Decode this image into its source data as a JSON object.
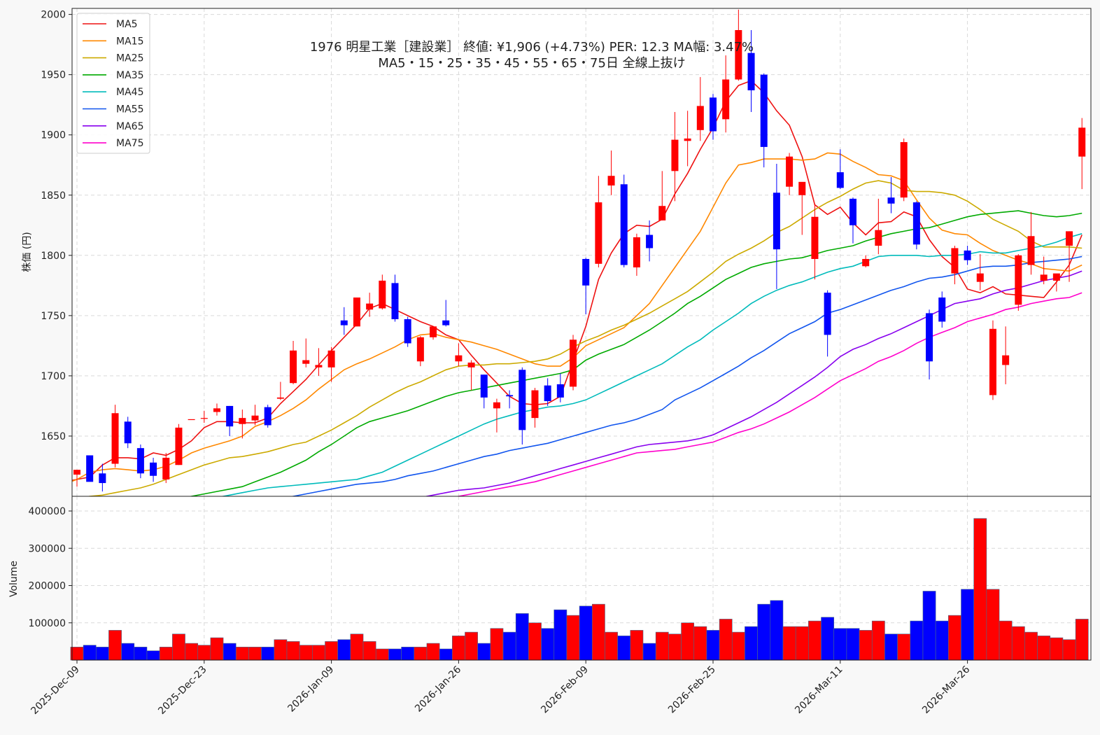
{
  "chart_data": {
    "type": "candlestick",
    "title": "1976 明星工業［建設業］ 終値: ¥1,906 (+4.73%)  PER: 12.3  MA幅: 3.47%",
    "subtitle": "MA5・15・25・35・45・55・65・75日 全線上抜け",
    "ylabel": "株価 (円)",
    "volume_label": "Volume",
    "price_ylim": [
      1600,
      2005
    ],
    "price_ticks": [
      1650,
      1700,
      1750,
      1800,
      1850,
      1900,
      1950,
      2000
    ],
    "volume_ylim": [
      0,
      400000
    ],
    "volume_ticks": [
      100000,
      200000,
      300000,
      400000
    ],
    "x_ticks": [
      {
        "index": 0,
        "label": "2025-Dec-09"
      },
      {
        "index": 10,
        "label": "2025-Dec-23"
      },
      {
        "index": 20,
        "label": "2026-Jan-09"
      },
      {
        "index": 30,
        "label": "2026-Jan-26"
      },
      {
        "index": 40,
        "label": "2026-Feb-09"
      },
      {
        "index": 50,
        "label": "2026-Feb-25"
      },
      {
        "index": 60,
        "label": "2026-Mar-11"
      },
      {
        "index": 70,
        "label": "2026-Mar-26"
      }
    ],
    "grid": true,
    "legend": "top-left",
    "colors": {
      "up": "#ff0000",
      "down": "#0000ff",
      "edge": "#4a6a8a"
    },
    "candles": [
      [
        1618,
        1622,
        1608,
        1622,
        35000
      ],
      [
        1634,
        1632,
        1613,
        1612,
        40000
      ],
      [
        1619,
        1627,
        1604,
        1611,
        35000
      ],
      [
        1627,
        1676,
        1624,
        1669,
        80000
      ],
      [
        1662,
        1666,
        1640,
        1644,
        45000
      ],
      [
        1640,
        1643,
        1615,
        1619,
        35000
      ],
      [
        1628,
        1632,
        1612,
        1617,
        25000
      ],
      [
        1614,
        1636,
        1611,
        1632,
        35000
      ],
      [
        1626,
        1660,
        1626,
        1657,
        70000
      ],
      [
        1664,
        1664,
        1664,
        1664,
        45000
      ],
      [
        1665,
        1671,
        1661,
        1665,
        40000
      ],
      [
        1670,
        1677,
        1667,
        1673,
        60000
      ],
      [
        1675,
        1675,
        1650,
        1658,
        45000
      ],
      [
        1660,
        1672,
        1648,
        1665,
        35000
      ],
      [
        1663,
        1676,
        1659,
        1667,
        35000
      ],
      [
        1674,
        1676,
        1657,
        1659,
        35000
      ],
      [
        1681,
        1695,
        1680,
        1682,
        55000
      ],
      [
        1694,
        1729,
        1693,
        1721,
        50000
      ],
      [
        1710,
        1731,
        1707,
        1713,
        40000
      ],
      [
        1707,
        1723,
        1700,
        1709,
        40000
      ],
      [
        1707,
        1724,
        1695,
        1721,
        50000
      ],
      [
        1746,
        1757,
        1734,
        1742,
        55000
      ],
      [
        1741,
        1765,
        1741,
        1765,
        70000
      ],
      [
        1755,
        1769,
        1749,
        1760,
        50000
      ],
      [
        1756,
        1784,
        1755,
        1779,
        30000
      ],
      [
        1777,
        1784,
        1745,
        1747,
        30000
      ],
      [
        1747,
        1749,
        1724,
        1727,
        35000
      ],
      [
        1712,
        1733,
        1708,
        1732,
        35000
      ],
      [
        1732,
        1741,
        1730,
        1741,
        45000
      ],
      [
        1746,
        1763,
        1741,
        1742,
        30000
      ],
      [
        1712,
        1727,
        1708,
        1717,
        65000
      ],
      [
        1707,
        1713,
        1688,
        1711,
        75000
      ],
      [
        1701,
        1701,
        1673,
        1682,
        45000
      ],
      [
        1673,
        1681,
        1653,
        1678,
        85000
      ],
      [
        1684,
        1688,
        1673,
        1683,
        75000
      ],
      [
        1705,
        1707,
        1643,
        1655,
        125000
      ],
      [
        1665,
        1690,
        1657,
        1688,
        100000
      ],
      [
        1692,
        1698,
        1675,
        1679,
        85000
      ],
      [
        1693,
        1702,
        1678,
        1682,
        135000
      ],
      [
        1691,
        1734,
        1688,
        1730,
        120000
      ],
      [
        1797,
        1798,
        1751,
        1775,
        145000
      ],
      [
        1793,
        1866,
        1790,
        1844,
        150000
      ],
      [
        1858,
        1887,
        1850,
        1866,
        75000
      ],
      [
        1859,
        1867,
        1790,
        1792,
        65000
      ],
      [
        1790,
        1818,
        1783,
        1815,
        80000
      ],
      [
        1817,
        1829,
        1795,
        1806,
        45000
      ],
      [
        1829,
        1870,
        1829,
        1841,
        75000
      ],
      [
        1870,
        1919,
        1845,
        1896,
        70000
      ],
      [
        1895,
        1920,
        1874,
        1897,
        100000
      ],
      [
        1904,
        1948,
        1895,
        1924,
        90000
      ],
      [
        1931,
        1934,
        1896,
        1903,
        80000
      ],
      [
        1913,
        1966,
        1902,
        1946,
        110000
      ],
      [
        1946,
        2004,
        1945,
        1987,
        75000
      ],
      [
        1968,
        1987,
        1919,
        1937,
        90000
      ],
      [
        1950,
        1951,
        1873,
        1890,
        150000
      ],
      [
        1852,
        1876,
        1772,
        1805,
        160000
      ],
      [
        1857,
        1885,
        1850,
        1882,
        90000
      ],
      [
        1850,
        1858,
        1817,
        1861,
        90000
      ],
      [
        1797,
        1842,
        1780,
        1832,
        105000
      ],
      [
        1769,
        1771,
        1716,
        1734,
        115000
      ],
      [
        1869,
        1888,
        1855,
        1856,
        85000
      ],
      [
        1847,
        1848,
        1810,
        1825,
        85000
      ],
      [
        1791,
        1800,
        1790,
        1797,
        80000
      ],
      [
        1808,
        1847,
        1801,
        1821,
        105000
      ],
      [
        1848,
        1865,
        1835,
        1843,
        70000
      ],
      [
        1848,
        1897,
        1845,
        1894,
        70000
      ],
      [
        1844,
        1845,
        1805,
        1809,
        105000
      ],
      [
        1752,
        1755,
        1697,
        1712,
        185000
      ],
      [
        1765,
        1770,
        1740,
        1745,
        105000
      ],
      [
        1785,
        1808,
        1776,
        1806,
        120000
      ],
      [
        1804,
        1808,
        1792,
        1796,
        190000
      ],
      [
        1778,
        1801,
        1771,
        1785,
        380000
      ],
      [
        1684,
        1746,
        1680,
        1739,
        190000
      ],
      [
        1709,
        1741,
        1693,
        1717,
        105000
      ],
      [
        1759,
        1801,
        1754,
        1800,
        90000
      ],
      [
        1792,
        1836,
        1784,
        1816,
        75000
      ],
      [
        1779,
        1799,
        1776,
        1784,
        65000
      ],
      [
        1779,
        1784,
        1770,
        1785,
        60000
      ],
      [
        1808,
        1820,
        1778,
        1820,
        55000
      ],
      [
        1882,
        1914,
        1855,
        1906,
        110000
      ]
    ],
    "series": [
      {
        "name": "MA5",
        "color": "#ee1111",
        "values": [
          1612,
          1614,
          1616,
          1626,
          1632,
          1632,
          1631,
          1636,
          1634,
          1639,
          1646,
          1657,
          1662,
          1662,
          1661,
          1661,
          1665,
          1677,
          1687,
          1697,
          1709,
          1721,
          1732,
          1743,
          1756,
          1760,
          1755,
          1750,
          1745,
          1741,
          1734,
          1730,
          1717,
          1705,
          1694,
          1683,
          1677,
          1676,
          1677,
          1683,
          1712,
          1741,
          1780,
          1802,
          1818,
          1825,
          1824,
          1830,
          1851,
          1868,
          1888,
          1906,
          1928,
          1941,
          1945,
          1935,
          1920,
          1908,
          1882,
          1842,
          1834,
          1840,
          1827,
          1817,
          1827,
          1828,
          1836,
          1832,
          1813,
          1799,
          1790,
          1772,
          1769,
          1774,
          1768,
          1767,
          1766,
          1765,
          1778,
          1792,
          1817
        ]
      },
      {
        "name": "MA15",
        "color": "#ff8800",
        "values": [
          1602,
          1610,
          1614,
          1620,
          1622,
          1623,
          1622,
          1621,
          1622,
          1625,
          1630,
          1636,
          1640,
          1643,
          1646,
          1650,
          1658,
          1662,
          1667,
          1673,
          1680,
          1689,
          1697,
          1705,
          1710,
          1714,
          1719,
          1724,
          1730,
          1734,
          1735,
          1732,
          1730,
          1728,
          1725,
          1722,
          1718,
          1714,
          1710,
          1708,
          1708,
          1715,
          1725,
          1730,
          1735,
          1740,
          1750,
          1760,
          1775,
          1790,
          1805,
          1820,
          1840,
          1860,
          1875,
          1877,
          1880,
          1880,
          1880,
          1879,
          1880,
          1885,
          1884,
          1878,
          1873,
          1867,
          1866,
          1862,
          1846,
          1831,
          1821,
          1818,
          1817,
          1810,
          1804,
          1800,
          1796,
          1793,
          1789,
          1788,
          1787,
          1792
        ]
      },
      {
        "name": "MA25",
        "color": "#ccaa00",
        "values": [
          1598,
          1600,
          1601,
          1603,
          1605,
          1607,
          1610,
          1614,
          1618,
          1622,
          1626,
          1629,
          1632,
          1633,
          1635,
          1637,
          1640,
          1643,
          1645,
          1650,
          1655,
          1661,
          1667,
          1674,
          1680,
          1686,
          1691,
          1695,
          1700,
          1705,
          1708,
          1709,
          1709,
          1710,
          1710,
          1711,
          1712,
          1714,
          1718,
          1724,
          1729,
          1733,
          1738,
          1742,
          1747,
          1752,
          1758,
          1764,
          1770,
          1778,
          1786,
          1795,
          1801,
          1806,
          1812,
          1819,
          1824,
          1831,
          1838,
          1844,
          1849,
          1855,
          1860,
          1862,
          1860,
          1854,
          1853,
          1853,
          1852,
          1850,
          1845,
          1838,
          1830,
          1825,
          1820,
          1812,
          1807,
          1807,
          1807,
          1806
        ]
      },
      {
        "name": "MA35",
        "color": "#00aa00",
        "values": [
          1590,
          1592,
          1594,
          1596,
          1598,
          1600,
          1602,
          1604,
          1606,
          1608,
          1612,
          1616,
          1620,
          1625,
          1630,
          1637,
          1643,
          1650,
          1657,
          1662,
          1665,
          1668,
          1671,
          1675,
          1679,
          1683,
          1686,
          1688,
          1690,
          1692,
          1694,
          1696,
          1698,
          1700,
          1702,
          1705,
          1713,
          1718,
          1722,
          1726,
          1732,
          1738,
          1745,
          1752,
          1760,
          1766,
          1773,
          1780,
          1785,
          1790,
          1793,
          1795,
          1797,
          1798,
          1801,
          1804,
          1806,
          1808,
          1812,
          1815,
          1818,
          1820,
          1822,
          1823,
          1826,
          1829,
          1832,
          1834,
          1835,
          1836,
          1837,
          1835,
          1833,
          1832,
          1833,
          1835
        ]
      },
      {
        "name": "MA45",
        "color": "#00bbbb",
        "values": [
          1595,
          1597,
          1599,
          1601,
          1603,
          1605,
          1607,
          1608,
          1609,
          1610,
          1611,
          1612,
          1613,
          1614,
          1617,
          1620,
          1625,
          1630,
          1635,
          1640,
          1645,
          1650,
          1655,
          1660,
          1664,
          1667,
          1670,
          1672,
          1674,
          1675,
          1677,
          1680,
          1685,
          1690,
          1695,
          1700,
          1705,
          1710,
          1717,
          1724,
          1730,
          1738,
          1745,
          1752,
          1760,
          1766,
          1771,
          1775,
          1778,
          1782,
          1786,
          1789,
          1791,
          1795,
          1799,
          1800,
          1800,
          1800,
          1799,
          1800,
          1800,
          1801,
          1803,
          1802,
          1802,
          1804,
          1806,
          1808,
          1811,
          1815,
          1818
        ]
      },
      {
        "name": "MA55",
        "color": "#1155ee",
        "values": [
          1590,
          1592,
          1594,
          1596,
          1598,
          1600,
          1602,
          1604,
          1606,
          1608,
          1610,
          1611,
          1612,
          1614,
          1617,
          1619,
          1621,
          1624,
          1627,
          1630,
          1633,
          1635,
          1638,
          1640,
          1642,
          1644,
          1647,
          1650,
          1653,
          1656,
          1659,
          1661,
          1664,
          1668,
          1672,
          1680,
          1685,
          1690,
          1696,
          1702,
          1708,
          1715,
          1721,
          1728,
          1735,
          1740,
          1745,
          1752,
          1755,
          1759,
          1763,
          1767,
          1771,
          1774,
          1778,
          1781,
          1782,
          1784,
          1787,
          1790,
          1791,
          1791,
          1792,
          1794,
          1795,
          1796,
          1797,
          1799
        ]
      },
      {
        "name": "MA65",
        "color": "#8800ee",
        "values": [
          1585,
          1587,
          1589,
          1591,
          1593,
          1595,
          1597,
          1599,
          1601,
          1603,
          1605,
          1606,
          1607,
          1609,
          1611,
          1614,
          1617,
          1620,
          1623,
          1626,
          1629,
          1632,
          1635,
          1638,
          1641,
          1643,
          1644,
          1645,
          1646,
          1648,
          1651,
          1656,
          1661,
          1666,
          1672,
          1678,
          1685,
          1692,
          1699,
          1707,
          1716,
          1722,
          1726,
          1731,
          1735,
          1740,
          1745,
          1750,
          1755,
          1760,
          1762,
          1764,
          1768,
          1771,
          1773,
          1776,
          1779,
          1781,
          1783,
          1787
        ]
      },
      {
        "name": "MA75",
        "color": "#ff00cc",
        "values": [
          1580,
          1582,
          1584,
          1586,
          1588,
          1590,
          1592,
          1594,
          1596,
          1598,
          1600,
          1602,
          1604,
          1606,
          1608,
          1610,
          1612,
          1615,
          1618,
          1621,
          1624,
          1627,
          1630,
          1633,
          1636,
          1637,
          1638,
          1639,
          1641,
          1643,
          1645,
          1649,
          1653,
          1656,
          1660,
          1665,
          1670,
          1676,
          1682,
          1689,
          1696,
          1701,
          1706,
          1712,
          1716,
          1721,
          1727,
          1732,
          1736,
          1740,
          1745,
          1748,
          1751,
          1755,
          1757,
          1760,
          1762,
          1764,
          1765,
          1769
        ]
      }
    ]
  }
}
